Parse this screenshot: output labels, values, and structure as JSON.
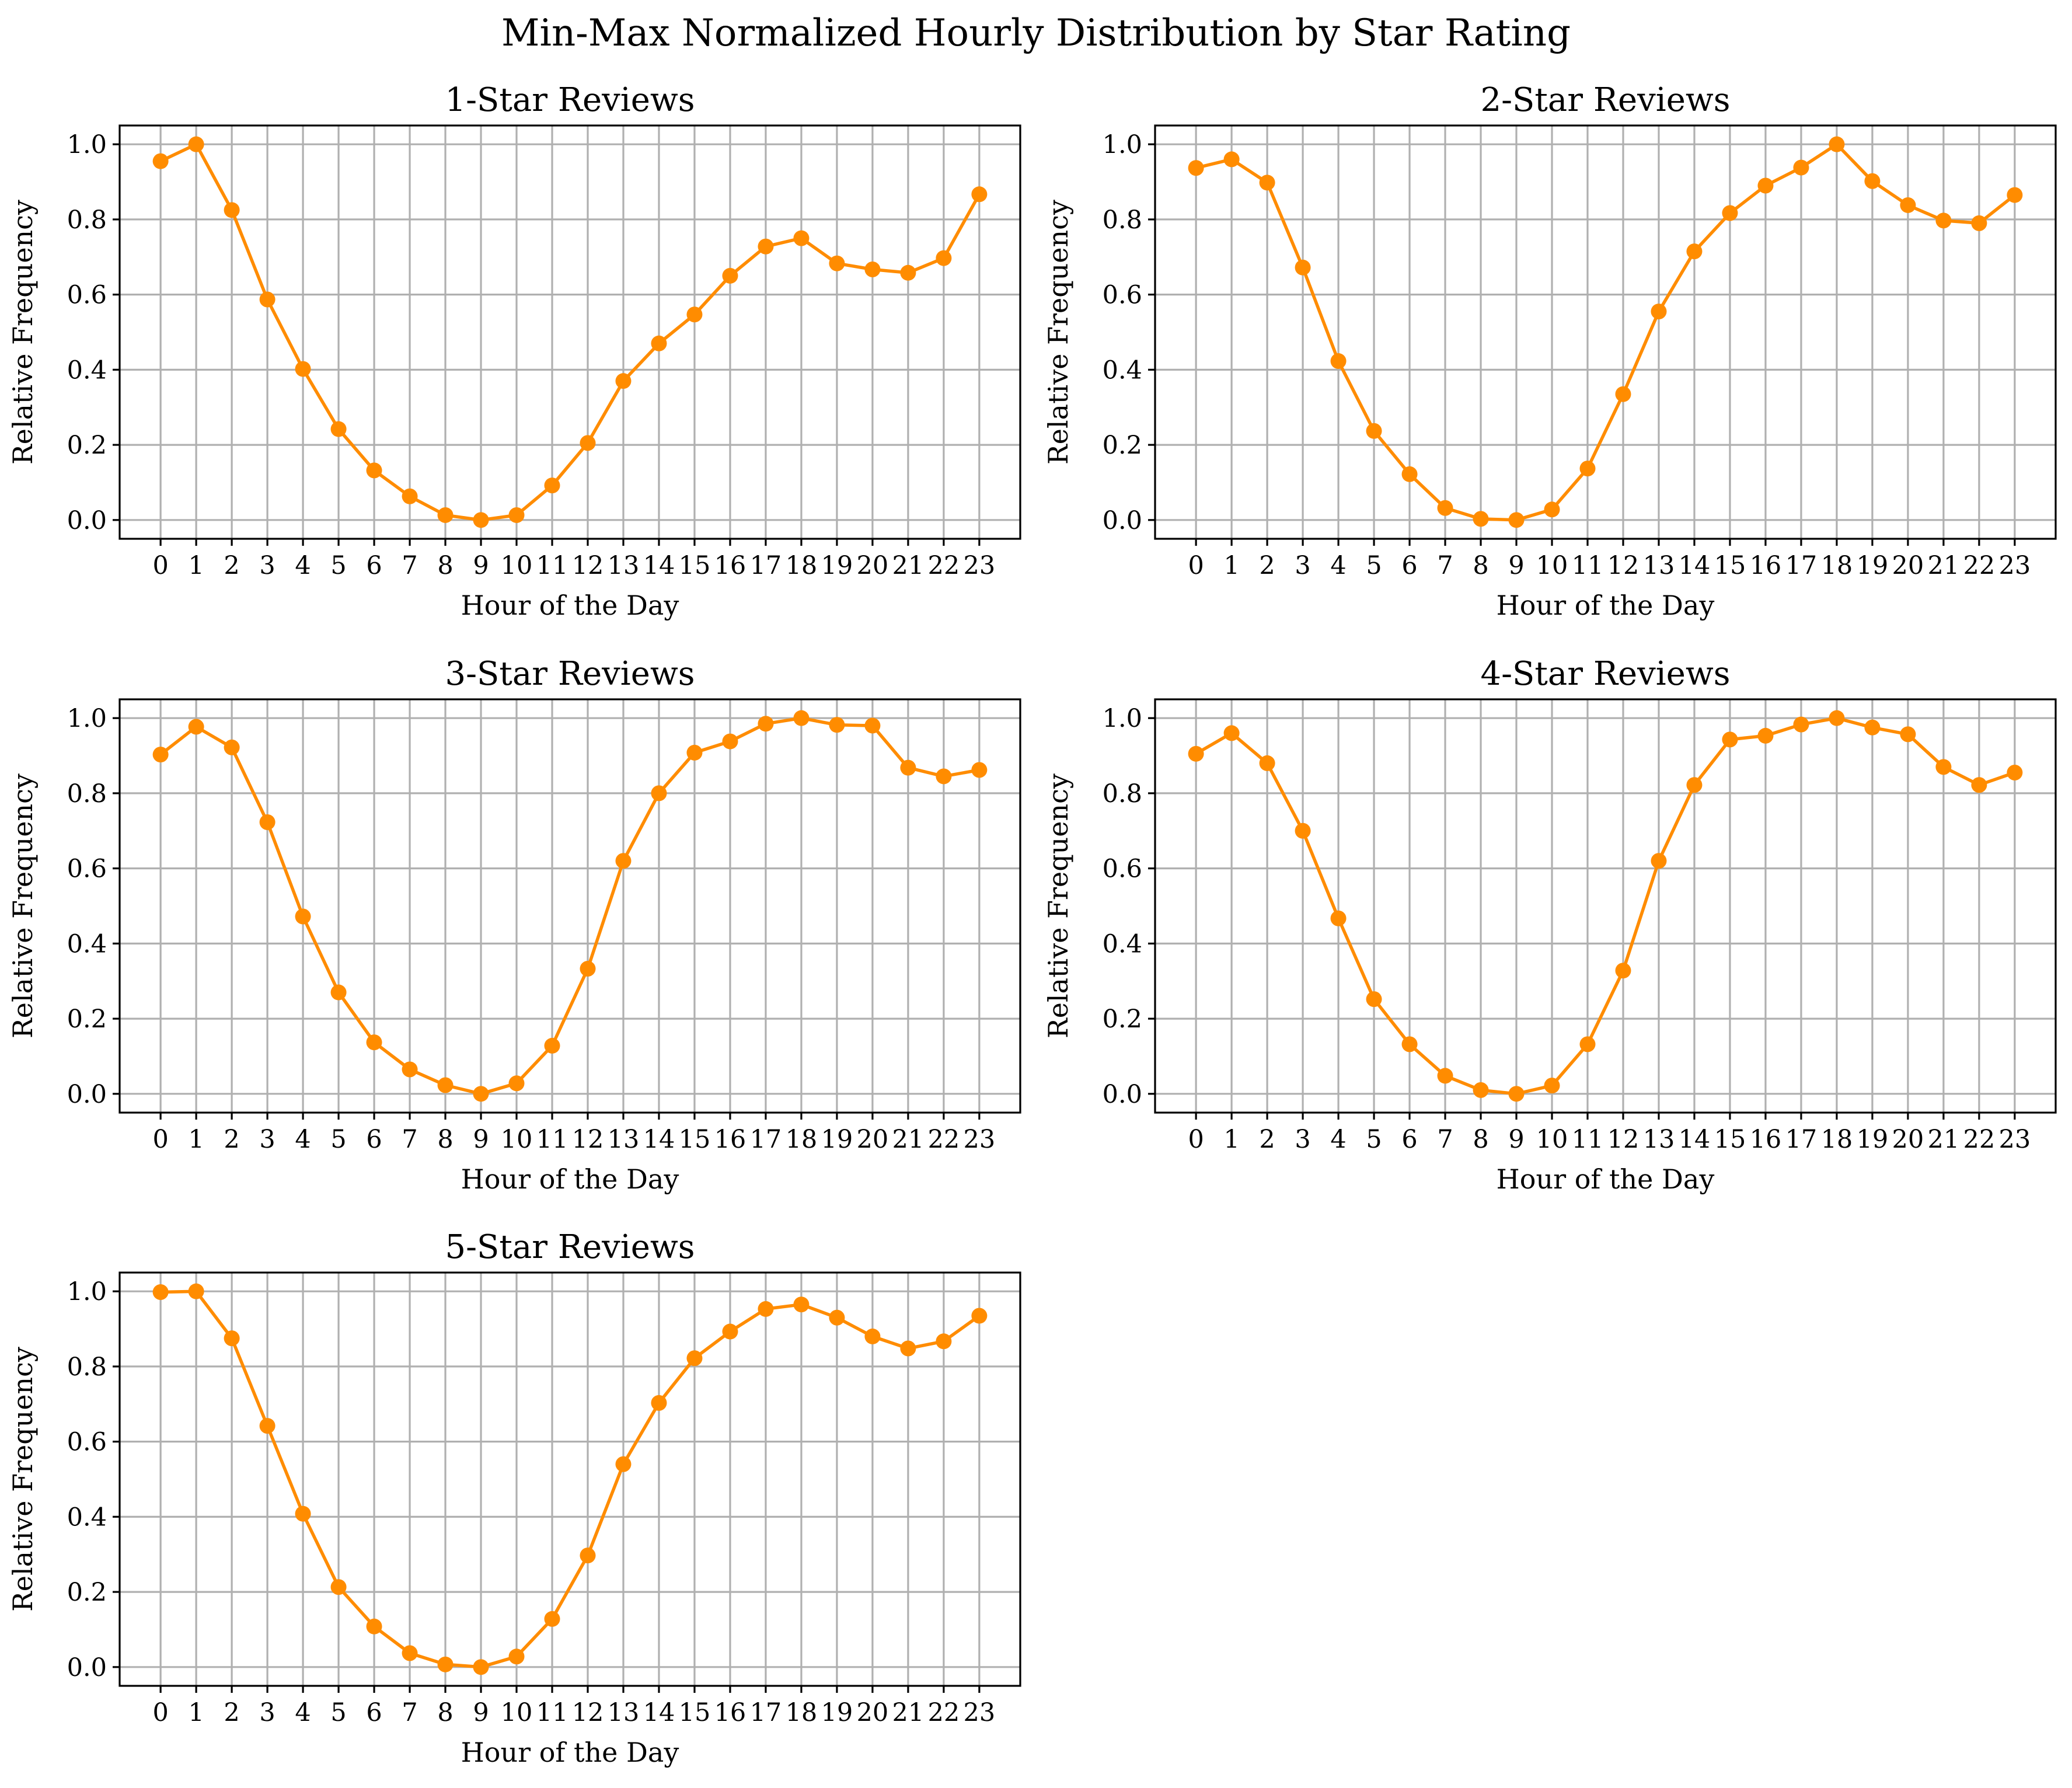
{
  "figure": {
    "title": "Min-Max Normalized Hourly Distribution by Star Rating",
    "line_color": "#ff8c00"
  },
  "chart_data": [
    {
      "type": "line",
      "title": "1-Star Reviews",
      "xlabel": "Hour of the Day",
      "ylabel": "Relative Frequency",
      "x": [
        0,
        1,
        2,
        3,
        4,
        5,
        6,
        7,
        8,
        9,
        10,
        11,
        12,
        13,
        14,
        15,
        16,
        17,
        18,
        19,
        20,
        21,
        22,
        23
      ],
      "y": [
        0.955,
        1.0,
        0.825,
        0.587,
        0.402,
        0.242,
        0.132,
        0.063,
        0.013,
        0.0,
        0.013,
        0.092,
        0.205,
        0.37,
        0.47,
        0.547,
        0.65,
        0.728,
        0.75,
        0.683,
        0.667,
        0.658,
        0.697,
        0.867
      ],
      "ylim": [
        -0.05,
        1.05
      ],
      "yticks": [
        "0.0",
        "0.2",
        "0.4",
        "0.6",
        "0.8",
        "1.0"
      ],
      "grid": true
    },
    {
      "type": "line",
      "title": "2-Star Reviews",
      "xlabel": "Hour of the Day",
      "ylabel": "Relative Frequency",
      "x": [
        0,
        1,
        2,
        3,
        4,
        5,
        6,
        7,
        8,
        9,
        10,
        11,
        12,
        13,
        14,
        15,
        16,
        17,
        18,
        19,
        20,
        21,
        22,
        23
      ],
      "y": [
        0.937,
        0.96,
        0.898,
        0.672,
        0.423,
        0.237,
        0.122,
        0.032,
        0.003,
        0.0,
        0.028,
        0.137,
        0.335,
        0.555,
        0.715,
        0.817,
        0.89,
        0.938,
        1.0,
        0.902,
        0.838,
        0.797,
        0.79,
        0.865
      ],
      "ylim": [
        -0.05,
        1.05
      ],
      "yticks": [
        "0.0",
        "0.2",
        "0.4",
        "0.6",
        "0.8",
        "1.0"
      ],
      "grid": true
    },
    {
      "type": "line",
      "title": "3-Star Reviews",
      "xlabel": "Hour of the Day",
      "ylabel": "Relative Frequency",
      "x": [
        0,
        1,
        2,
        3,
        4,
        5,
        6,
        7,
        8,
        9,
        10,
        11,
        12,
        13,
        14,
        15,
        16,
        17,
        18,
        19,
        20,
        21,
        22,
        23
      ],
      "y": [
        0.903,
        0.977,
        0.922,
        0.723,
        0.472,
        0.27,
        0.137,
        0.065,
        0.023,
        0.0,
        0.028,
        0.128,
        0.333,
        0.62,
        0.8,
        0.908,
        0.938,
        0.985,
        1.0,
        0.982,
        0.98,
        0.868,
        0.845,
        0.862
      ],
      "ylim": [
        -0.05,
        1.05
      ],
      "yticks": [
        "0.0",
        "0.2",
        "0.4",
        "0.6",
        "0.8",
        "1.0"
      ],
      "grid": true
    },
    {
      "type": "line",
      "title": "4-Star Reviews",
      "xlabel": "Hour of the Day",
      "ylabel": "Relative Frequency",
      "x": [
        0,
        1,
        2,
        3,
        4,
        5,
        6,
        7,
        8,
        9,
        10,
        11,
        12,
        13,
        14,
        15,
        16,
        17,
        18,
        19,
        20,
        21,
        22,
        23
      ],
      "y": [
        0.905,
        0.96,
        0.88,
        0.7,
        0.467,
        0.252,
        0.132,
        0.048,
        0.01,
        0.0,
        0.022,
        0.132,
        0.328,
        0.62,
        0.822,
        0.943,
        0.953,
        0.983,
        1.0,
        0.975,
        0.957,
        0.87,
        0.822,
        0.855
      ],
      "ylim": [
        -0.05,
        1.05
      ],
      "yticks": [
        "0.0",
        "0.2",
        "0.4",
        "0.6",
        "0.8",
        "1.0"
      ],
      "grid": true
    },
    {
      "type": "line",
      "title": "5-Star Reviews",
      "xlabel": "Hour of the Day",
      "ylabel": "Relative Frequency",
      "x": [
        0,
        1,
        2,
        3,
        4,
        5,
        6,
        7,
        8,
        9,
        10,
        11,
        12,
        13,
        14,
        15,
        16,
        17,
        18,
        19,
        20,
        21,
        22,
        23
      ],
      "y": [
        0.998,
        1.0,
        0.875,
        0.642,
        0.408,
        0.213,
        0.108,
        0.037,
        0.007,
        0.0,
        0.028,
        0.128,
        0.297,
        0.54,
        0.703,
        0.822,
        0.893,
        0.953,
        0.965,
        0.93,
        0.88,
        0.848,
        0.867,
        0.935
      ],
      "ylim": [
        -0.05,
        1.05
      ],
      "yticks": [
        "0.0",
        "0.2",
        "0.4",
        "0.6",
        "0.8",
        "1.0"
      ],
      "grid": true
    }
  ]
}
